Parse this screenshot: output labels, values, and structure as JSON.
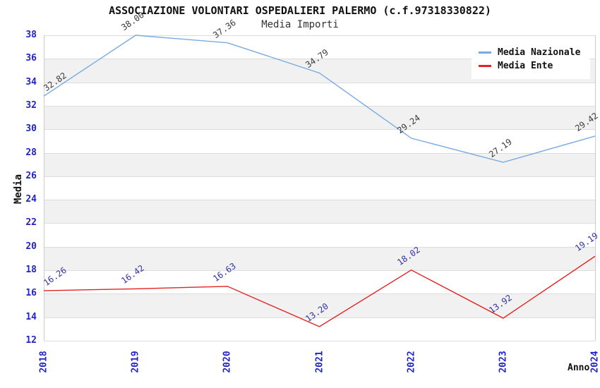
{
  "title": "ASSOCIAZIONE VOLONTARI OSPEDALIERI PALERMO (c.f.97318330822)",
  "subtitle": "Media Importi",
  "chart_data": {
    "type": "line",
    "title": "Media Importi",
    "x": [
      "2018",
      "2019",
      "2020",
      "2021",
      "2022",
      "2023",
      "2024"
    ],
    "series": [
      {
        "name": "Media Nazionale",
        "color": "#78abdf",
        "label_color": "#3c3c3c",
        "values": [
          32.82,
          38.0,
          37.36,
          34.79,
          29.24,
          27.19,
          29.42
        ]
      },
      {
        "name": "Media Ente",
        "color": "#e42222",
        "label_color": "#3333a0",
        "values": [
          16.26,
          16.42,
          16.63,
          13.2,
          18.02,
          13.92,
          19.19
        ]
      }
    ],
    "xlabel": "Anno",
    "ylabel": "Media",
    "ylim": [
      12,
      38
    ],
    "y_tick_step": 2,
    "grid": true,
    "legend_position": "top-right",
    "tick_color": "#2222cc",
    "band_colors": [
      "#ffffff",
      "#f1f1f1"
    ],
    "gridline_color": "#dcdcdc"
  }
}
